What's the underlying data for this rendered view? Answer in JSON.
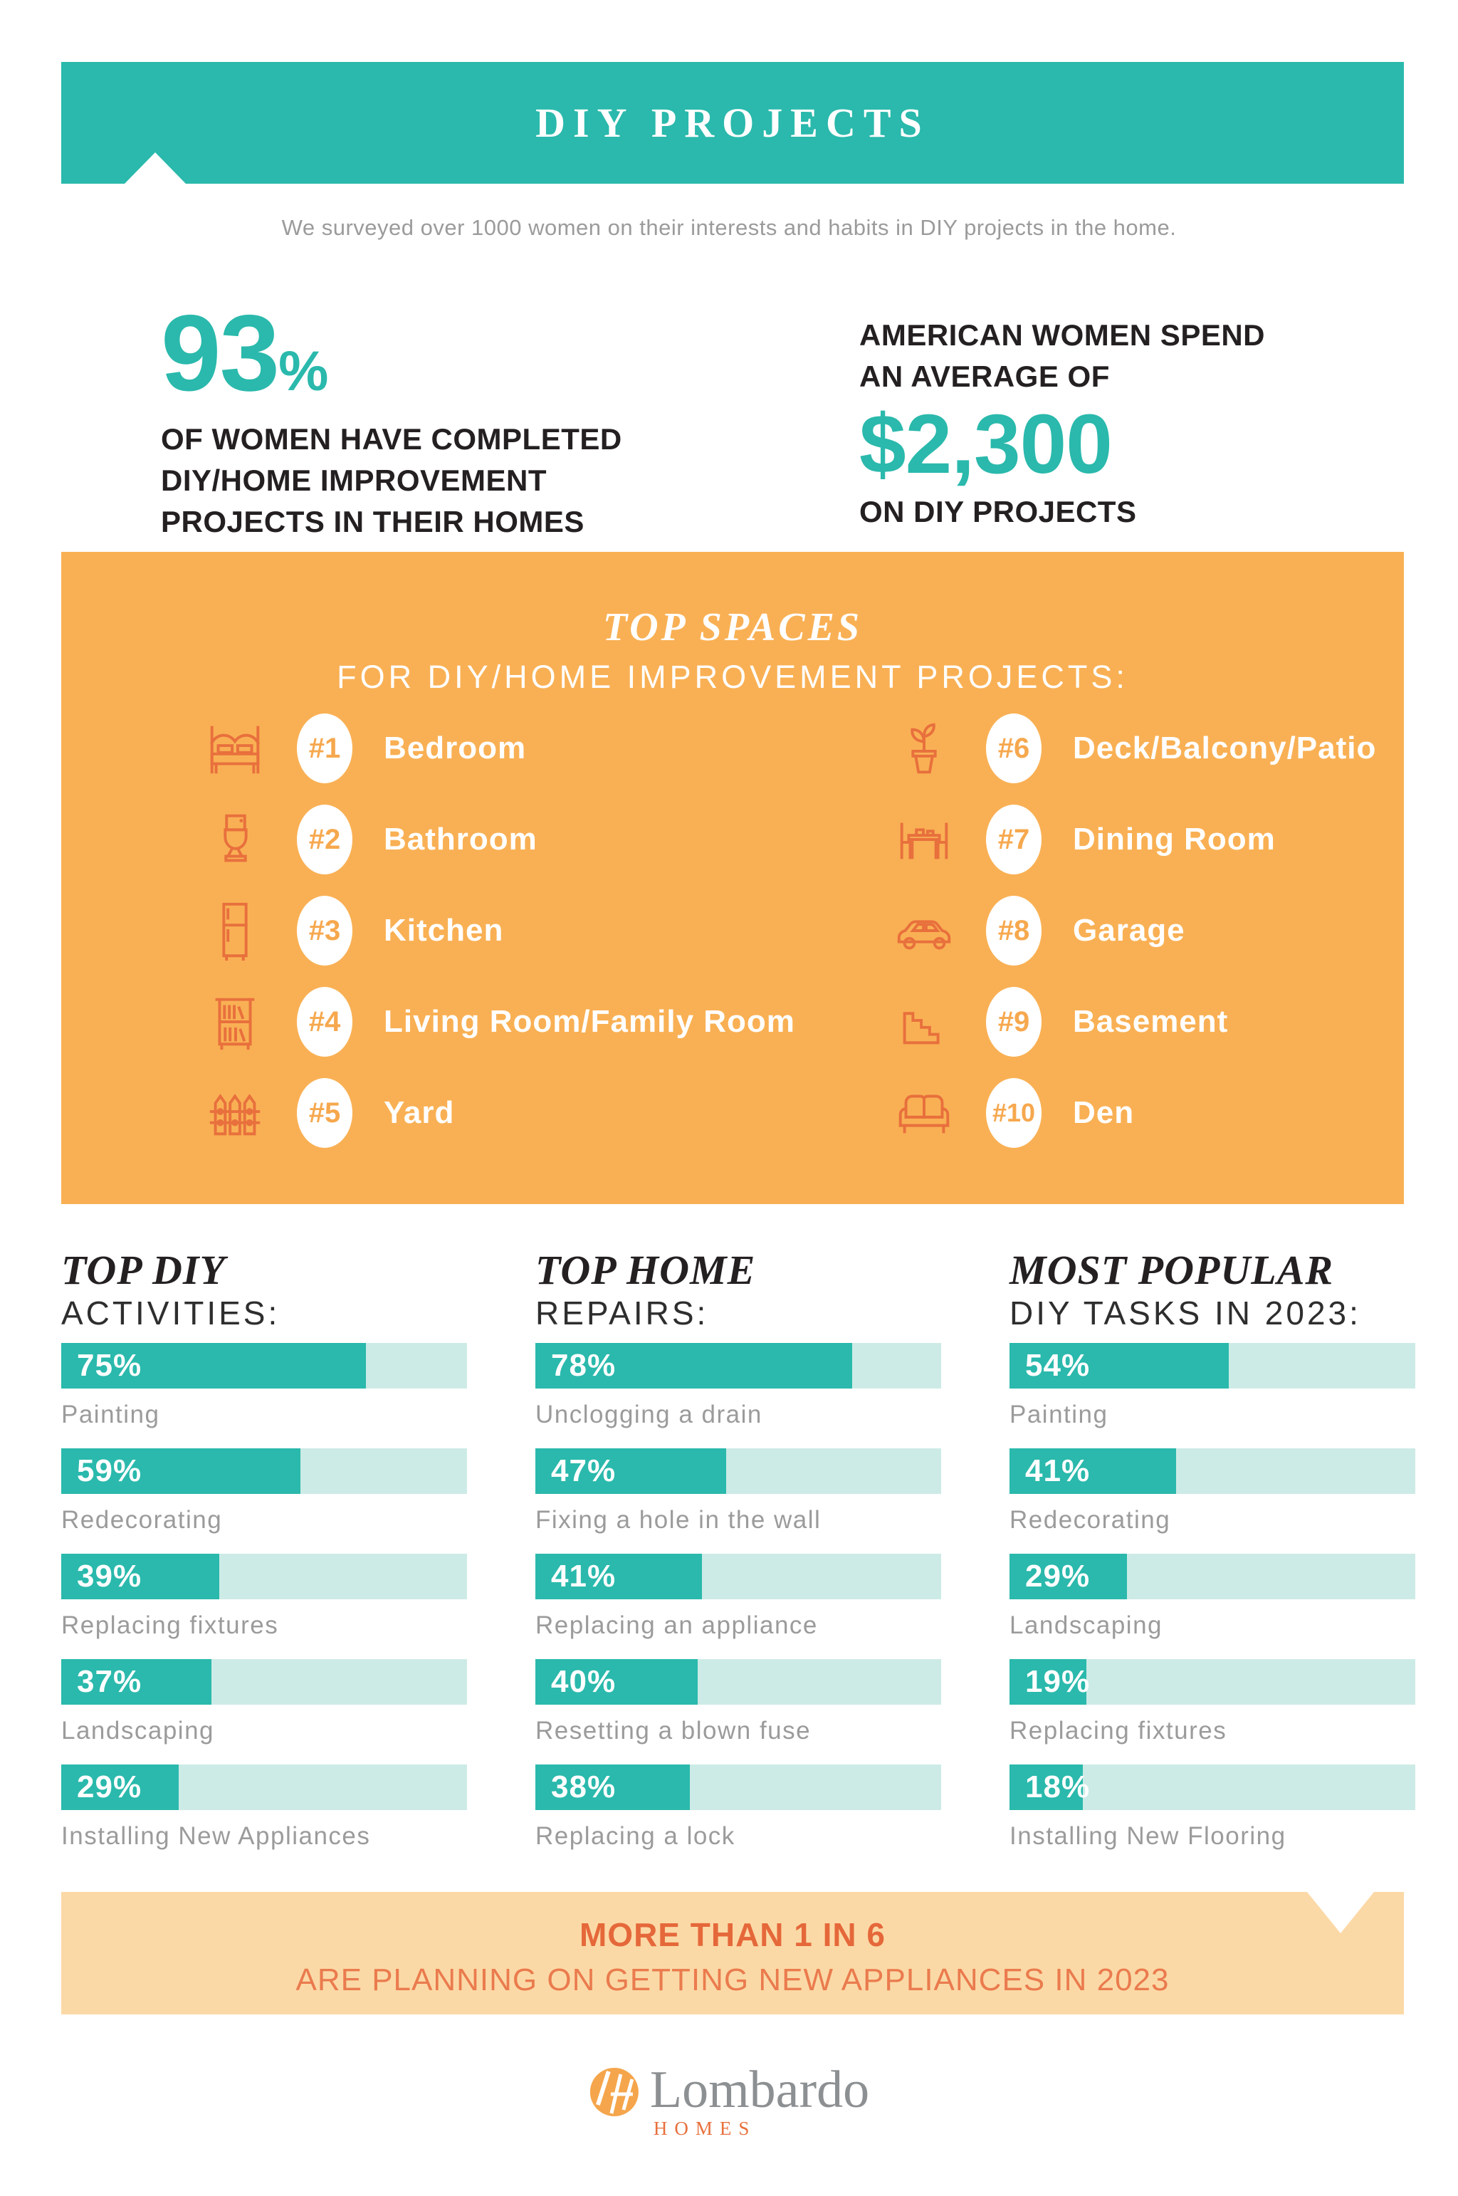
{
  "header": {
    "title": "DIY PROJECTS"
  },
  "intro": {
    "text": "We surveyed over 1000 women on their interests and habits in DIY projects in the home."
  },
  "stat_left": {
    "value": "93",
    "unit": "%",
    "line1": "OF WOMEN HAVE COMPLETED",
    "line2": "DIY/HOME IMPROVEMENT",
    "line3": "PROJECTS IN THEIR HOMES"
  },
  "stat_right": {
    "line1": "AMERICAN WOMEN SPEND",
    "line2": "AN AVERAGE OF",
    "value": "$2,300",
    "line3": "ON DIY PROJECTS"
  },
  "top_spaces": {
    "title": "TOP SPACES",
    "subtitle": "FOR DIY/HOME IMPROVEMENT PROJECTS:",
    "items": [
      {
        "rank": "#1",
        "label": "Bedroom",
        "icon": "bed-icon"
      },
      {
        "rank": "#2",
        "label": "Bathroom",
        "icon": "toilet-icon"
      },
      {
        "rank": "#3",
        "label": "Kitchen",
        "icon": "refrigerator-icon"
      },
      {
        "rank": "#4",
        "label": "Living Room/Family Room",
        "icon": "bookshelf-icon"
      },
      {
        "rank": "#5",
        "label": "Yard",
        "icon": "fence-icon"
      },
      {
        "rank": "#6",
        "label": "Deck/Balcony/Patio",
        "icon": "potted-plant-icon"
      },
      {
        "rank": "#7",
        "label": "Dining Room",
        "icon": "dining-table-icon"
      },
      {
        "rank": "#8",
        "label": "Garage",
        "icon": "car-icon"
      },
      {
        "rank": "#9",
        "label": "Basement",
        "icon": "stairs-icon"
      },
      {
        "rank": "#10",
        "label": "Den",
        "icon": "sofa-icon"
      }
    ]
  },
  "chart_data": [
    {
      "type": "bar",
      "title": "TOP DIY ACTIVITIES:",
      "title_em": "TOP DIY",
      "title_rest": "ACTIVITIES:",
      "categories": [
        "Painting",
        "Redecorating",
        "Replacing fixtures",
        "Landscaping",
        "Installing New Appliances"
      ],
      "values": [
        75,
        59,
        39,
        37,
        29
      ],
      "unit": "%",
      "xlim": [
        0,
        100
      ],
      "legend": "none",
      "grid": false
    },
    {
      "type": "bar",
      "title": "TOP HOME REPAIRS:",
      "title_em": "TOP HOME",
      "title_rest": "REPAIRS:",
      "categories": [
        "Unclogging a drain",
        "Fixing a hole in the wall",
        "Replacing an appliance",
        "Resetting a blown fuse",
        "Replacing a lock"
      ],
      "values": [
        78,
        47,
        41,
        40,
        38
      ],
      "unit": "%",
      "xlim": [
        0,
        100
      ],
      "legend": "none",
      "grid": false
    },
    {
      "type": "bar",
      "title": "MOST POPULAR DIY TASKS IN 2023:",
      "title_em": "MOST POPULAR",
      "title_rest": "DIY TASKS IN 2023:",
      "categories": [
        "Painting",
        "Redecorating",
        "Landscaping",
        "Replacing fixtures",
        "Installing New Flooring"
      ],
      "values": [
        54,
        41,
        29,
        19,
        18
      ],
      "unit": "%",
      "xlim": [
        0,
        100
      ],
      "legend": "none",
      "grid": false
    }
  ],
  "callout": {
    "heading": "MORE THAN 1 IN 6",
    "text": "ARE PLANNING ON GETTING NEW APPLIANCES IN 2023"
  },
  "footer": {
    "brand": "Lombardo",
    "sub": "HOMES"
  },
  "colors": {
    "teal": "#2ab9ac",
    "bar_track": "#cdebe6",
    "orange_panel": "#f9b054",
    "icon_orange": "#e8703d",
    "dark_text": "#242021",
    "gray_text": "#9b9b9b",
    "callout_bg": "#fbd9a6",
    "callout_heading": "#e5683a",
    "callout_text": "#ea7b4e",
    "logo_gray": "#8d9092",
    "logo_circle": "#f5a54b"
  }
}
